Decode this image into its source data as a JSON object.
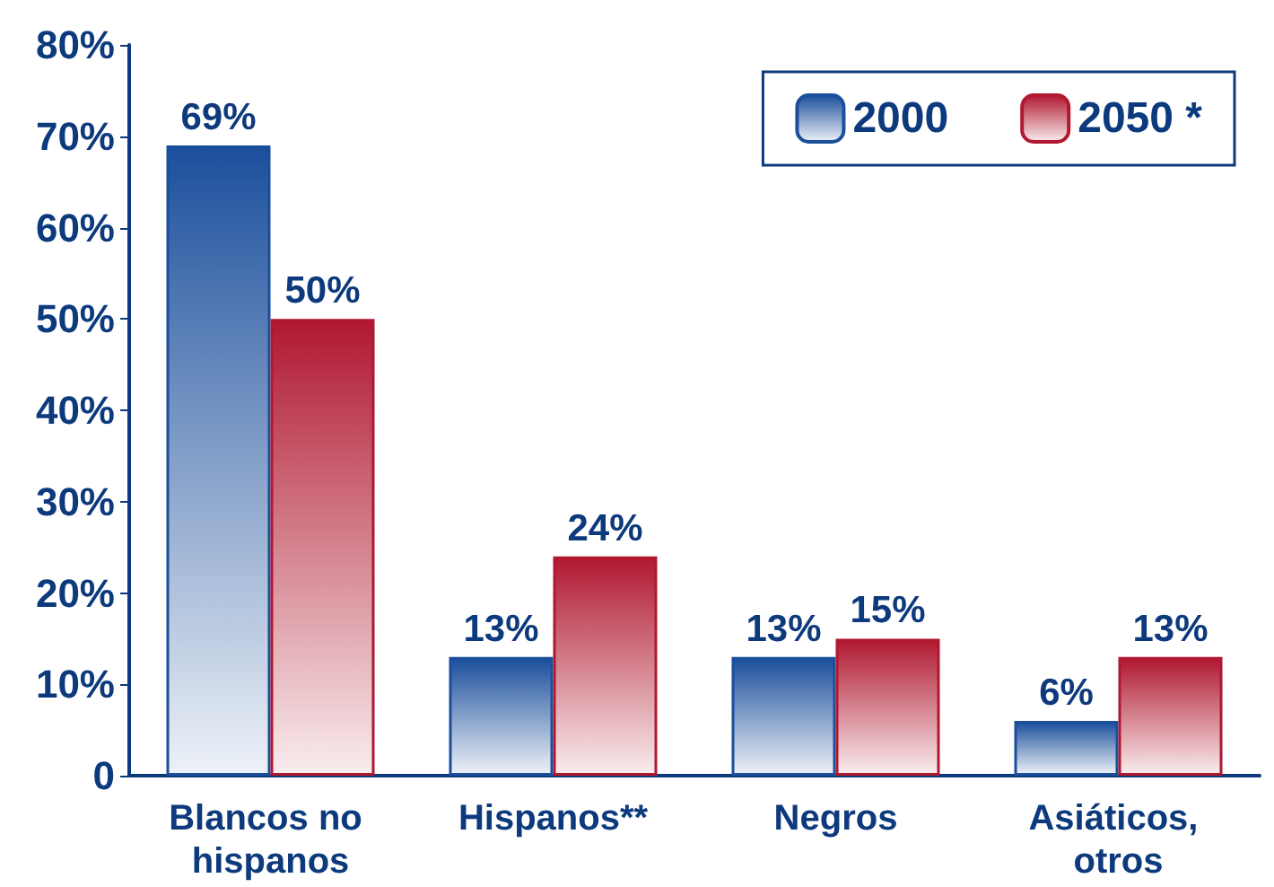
{
  "chart_data": {
    "type": "bar",
    "categories": [
      "Blancos no hispanos",
      "Hispanos**",
      "Negros",
      "Asiáticos, otros"
    ],
    "series": [
      {
        "name": "2000",
        "color": "#1b4f9c",
        "values": [
          69,
          13,
          13,
          6
        ],
        "value_labels": [
          "69%",
          "13%",
          "13%",
          "6%"
        ]
      },
      {
        "name": "2050 *",
        "color": "#b01830",
        "values": [
          50,
          24,
          15,
          13
        ],
        "value_labels": [
          "50%",
          "24%",
          "15%",
          "13%"
        ]
      }
    ],
    "ylim": [
      0,
      80
    ],
    "yticks": [
      {
        "value": 0,
        "label": "0"
      },
      {
        "value": 10,
        "label": "10%"
      },
      {
        "value": 20,
        "label": "20%"
      },
      {
        "value": 30,
        "label": "30%"
      },
      {
        "value": 40,
        "label": "40%"
      },
      {
        "value": 50,
        "label": "50%"
      },
      {
        "value": 60,
        "label": "60%"
      },
      {
        "value": 70,
        "label": "70%"
      },
      {
        "value": 80,
        "label": "80%"
      }
    ],
    "grid": false,
    "legend": "top right"
  }
}
